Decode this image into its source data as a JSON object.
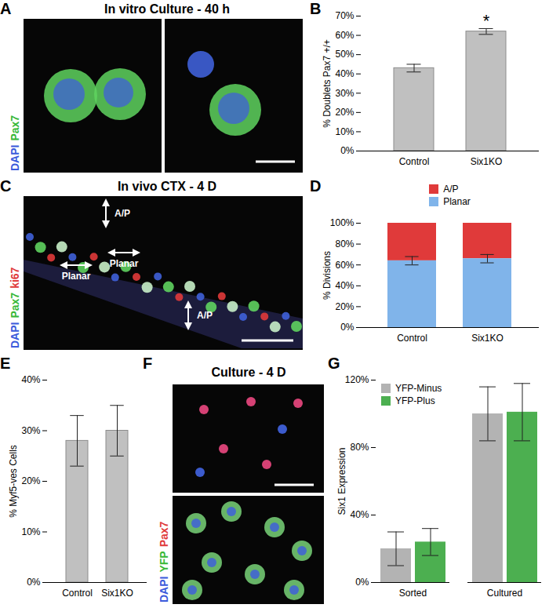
{
  "images": [
    {
      "panel": "A",
      "title": "In vitro Culture - 40 h",
      "channels": [
        {
          "text": "DAPI",
          "color": "#3b5bdb"
        },
        {
          "text": "Pax7",
          "color": "#37b837"
        }
      ]
    },
    {
      "panel": "C",
      "title": "In vivo CTX - 4 D",
      "channels": [
        {
          "text": "DAPI",
          "color": "#3b5bdb"
        },
        {
          "text": "Pax7",
          "color": "#37b837"
        },
        {
          "text": "ki67",
          "color": "#e03a3a"
        }
      ],
      "annotations": [
        "A/P",
        "Planar",
        "Planar",
        "A/P"
      ]
    },
    {
      "panel": "F",
      "title": "Culture - 4 D",
      "channels": [
        {
          "text": "DAPI",
          "color": "#3b5bdb"
        },
        {
          "text": "YFP",
          "color": "#37b837"
        },
        {
          "text": "Pax7",
          "color": "#e03a3a"
        }
      ]
    }
  ],
  "chart_data": [
    {
      "panel": "B",
      "type": "bar",
      "categories": [
        "Control",
        "Six1KO"
      ],
      "values": [
        43,
        62
      ],
      "errors": [
        2,
        1.5
      ],
      "color": "#c0c0c0",
      "ylabel": "% Doublets Pax7 +/+",
      "ylim": [
        0,
        70
      ],
      "yticks": [
        {
          "value": 0,
          "label": "0%"
        },
        {
          "value": 10,
          "label": "10%"
        },
        {
          "value": 20,
          "label": "20%"
        },
        {
          "value": 30,
          "label": "30%"
        },
        {
          "value": 40,
          "label": "40%"
        },
        {
          "value": 50,
          "label": "50%"
        },
        {
          "value": 60,
          "label": "60%"
        },
        {
          "value": 70,
          "label": "70%"
        }
      ],
      "annotations": [
        {
          "text": "*",
          "category": "Six1KO"
        }
      ]
    },
    {
      "panel": "D",
      "type": "bar",
      "stacked": true,
      "legend": "top",
      "categories": [
        "Control",
        "Six1KO"
      ],
      "series": [
        {
          "name": "A/P",
          "color": "#e03a3a",
          "values": [
            36,
            34
          ]
        },
        {
          "name": "Planar",
          "color": "#80b4ea",
          "values": [
            64,
            66
          ],
          "errors": [
            4,
            4
          ]
        }
      ],
      "ylabel": "% Divisions",
      "ylim": [
        0,
        100
      ],
      "yticks": [
        {
          "value": 0,
          "label": "0%"
        },
        {
          "value": 20,
          "label": "20%"
        },
        {
          "value": 40,
          "label": "40%"
        },
        {
          "value": 60,
          "label": "60%"
        },
        {
          "value": 80,
          "label": "80%"
        },
        {
          "value": 100,
          "label": "100%"
        }
      ]
    },
    {
      "panel": "E",
      "type": "bar",
      "categories": [
        "Control",
        "Six1KO"
      ],
      "values": [
        28,
        30
      ],
      "errors": [
        5,
        5
      ],
      "color": "#c0c0c0",
      "ylabel": "% Myf5-ves Cells",
      "ylim": [
        0,
        40
      ],
      "yticks": [
        {
          "value": 0,
          "label": "0%"
        },
        {
          "value": 10,
          "label": "10%"
        },
        {
          "value": 20,
          "label": "20%"
        },
        {
          "value": 30,
          "label": "30%"
        },
        {
          "value": 40,
          "label": "40%"
        }
      ]
    },
    {
      "panel": "G",
      "type": "bar",
      "legend": "top-left",
      "categories": [
        "Sorted",
        "Cultured"
      ],
      "series": [
        {
          "name": "YFP-Minus",
          "color": "#b3b3b3",
          "values": [
            20,
            100
          ],
          "errors": [
            10,
            16
          ]
        },
        {
          "name": "YFP-Plus",
          "color": "#4caf50",
          "values": [
            24,
            101
          ],
          "errors": [
            8,
            17
          ]
        }
      ],
      "ylabel": "Six1 Expression",
      "ylim": [
        0,
        120
      ],
      "yticks": [
        {
          "value": 0,
          "label": "0%"
        },
        {
          "value": 40,
          "label": "40%"
        },
        {
          "value": 80,
          "label": "80%"
        },
        {
          "value": 120,
          "label": "120%"
        }
      ]
    }
  ]
}
